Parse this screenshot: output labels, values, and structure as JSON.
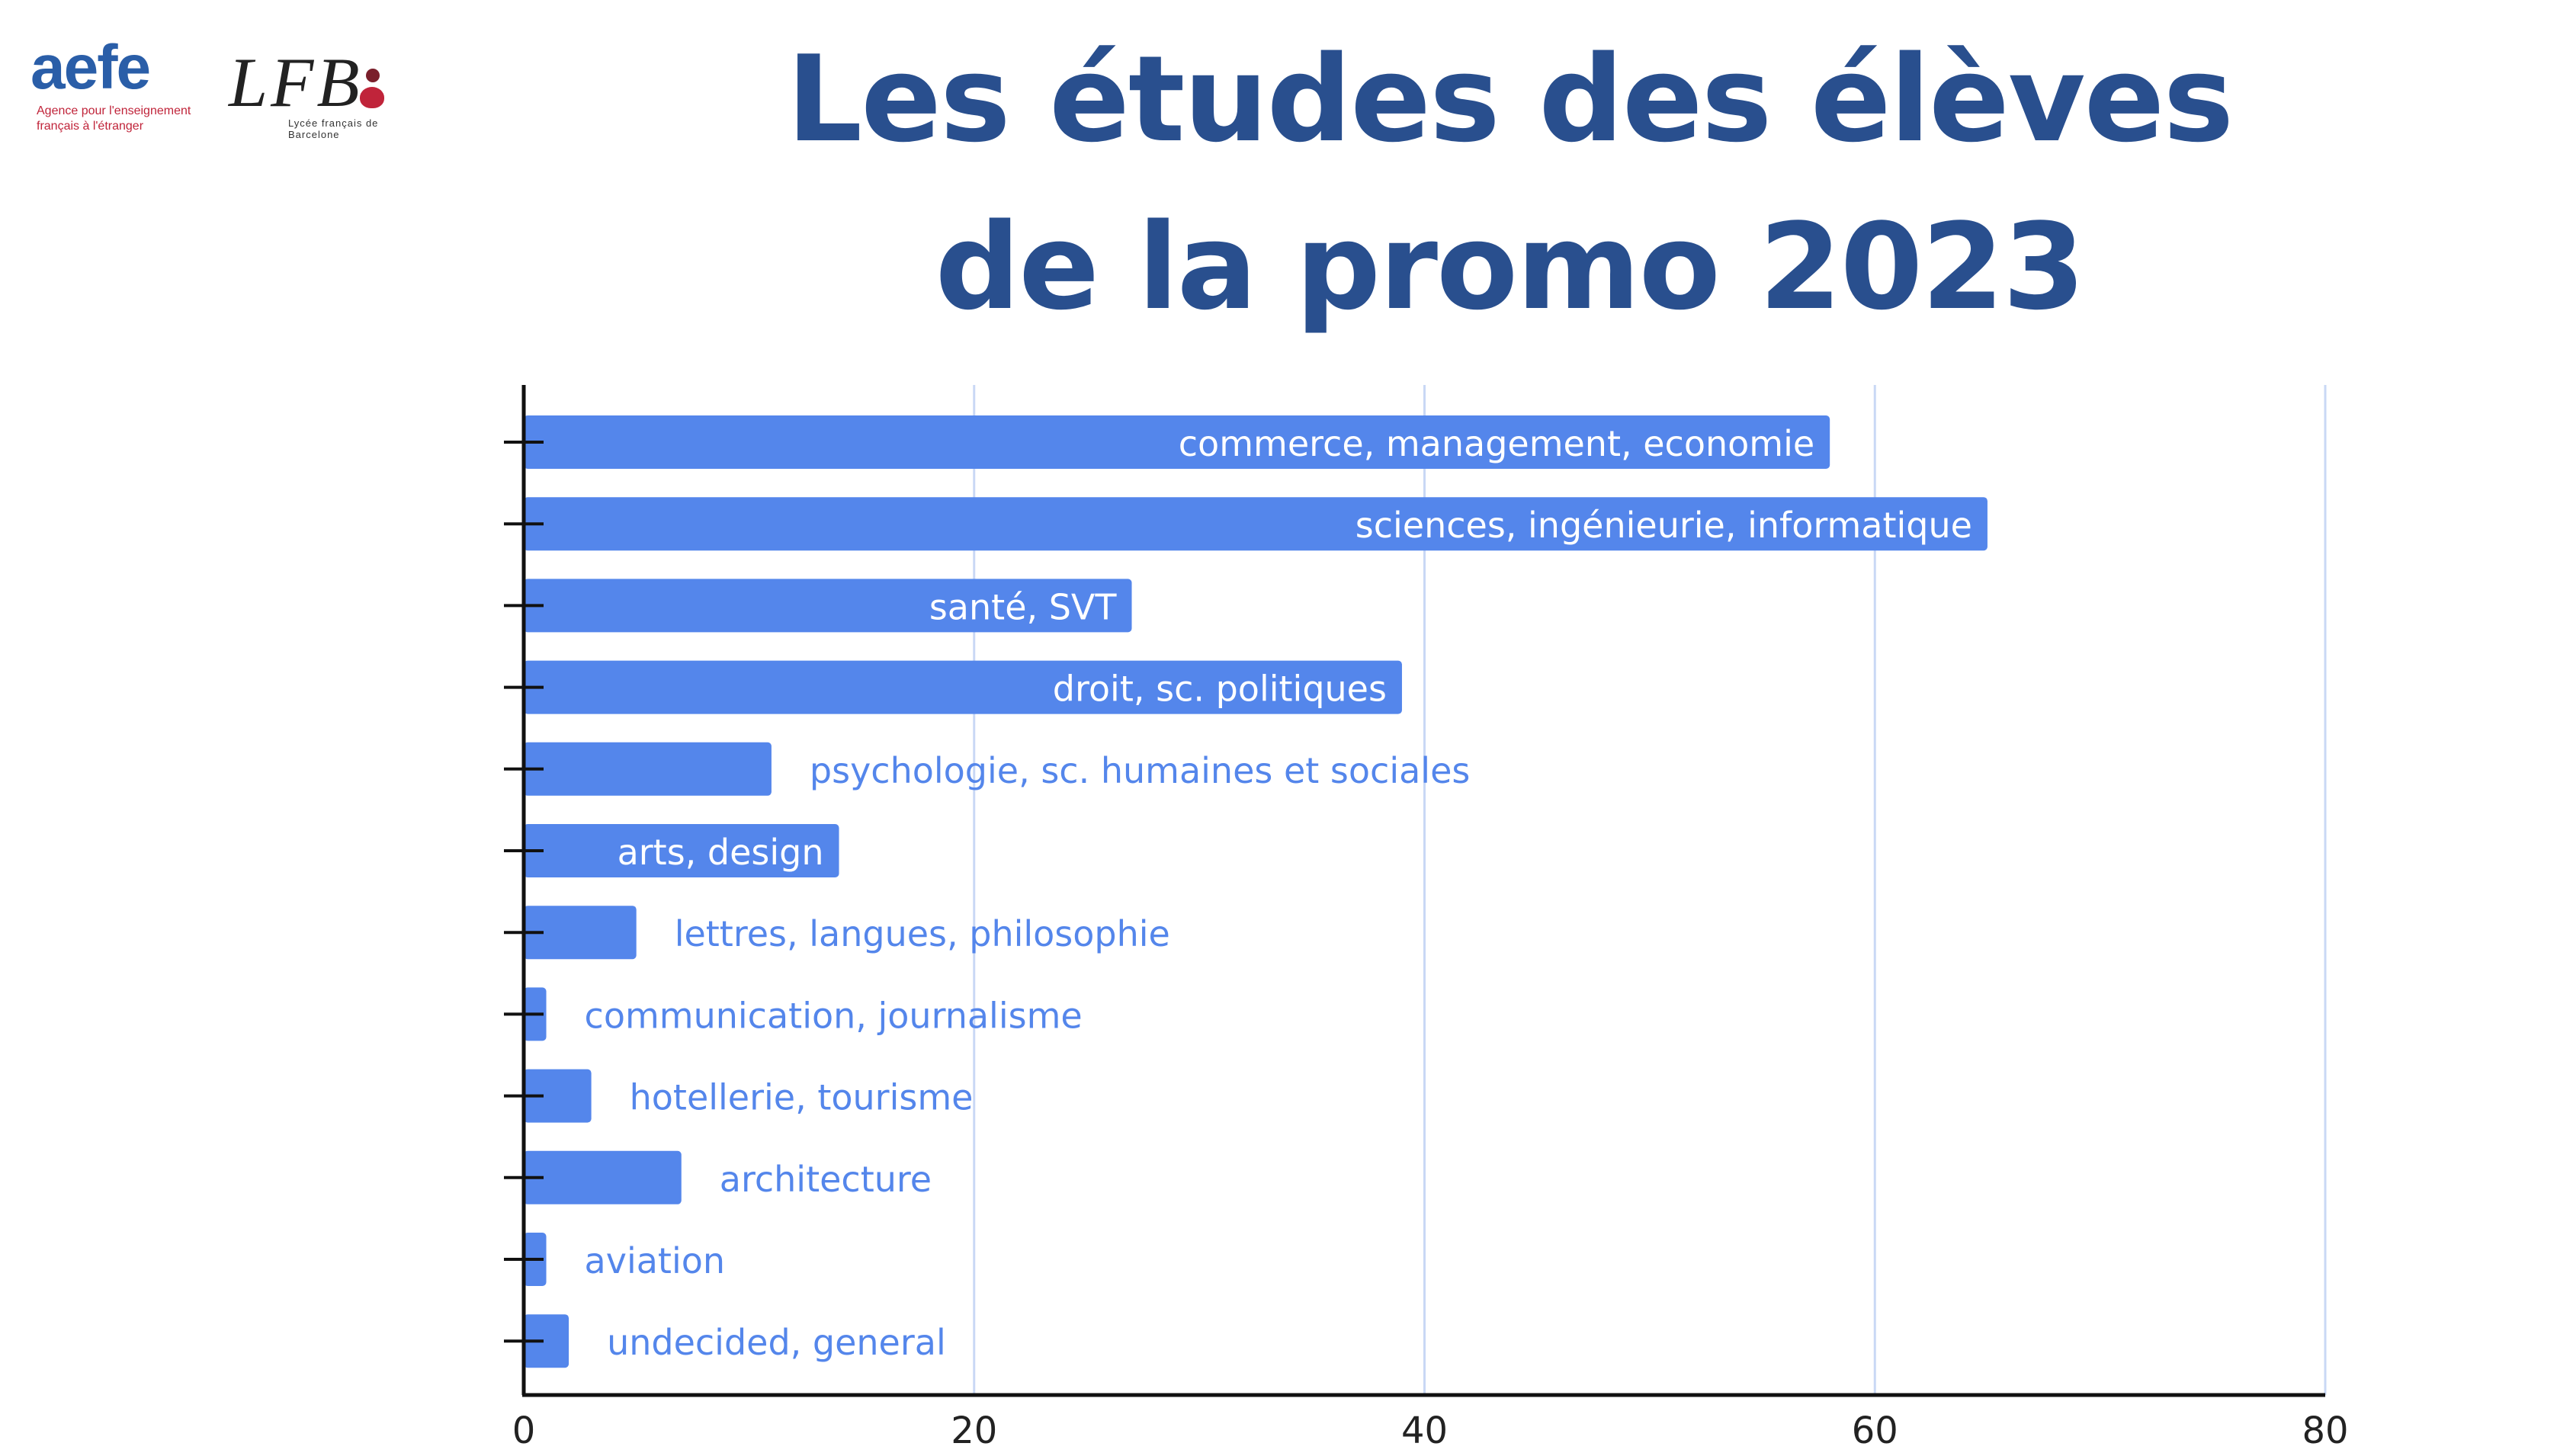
{
  "title_line1": "Les études des élèves",
  "title_line2": "de la promo 2023",
  "logos": {
    "aefe": {
      "word": "aefe",
      "tagline": "Agence pour l'enseignement français à l'étranger"
    },
    "lfb": {
      "word": "LFB",
      "subtitle": "Lycée français de Barcelone"
    }
  },
  "colors": {
    "bar": "#5486eb",
    "title": "#294f8e",
    "gridline": "#c9d8f5",
    "axis": "#111111",
    "label_inside": "#ffffff",
    "label_outside": "#5486eb"
  },
  "chart_data": {
    "type": "bar",
    "orientation": "horizontal",
    "categories": [
      "commerce, management, economie",
      "sciences, ingénieurie, informatique",
      "santé, SVT",
      "droit, sc. politiques",
      "psychologie, sc. humaines et sociales",
      "arts, design",
      "lettres, langues, philosophie",
      "communication, journalisme",
      "hotellerie, tourisme",
      "architecture",
      "aviation",
      "undecided, general"
    ],
    "values": [
      58,
      65,
      27,
      39,
      11,
      14,
      5,
      1,
      3,
      7,
      1,
      2
    ],
    "xlim": [
      0,
      80
    ],
    "xticks": [
      "0",
      "20",
      "40",
      "60",
      "80"
    ],
    "grid": true,
    "legend": "none",
    "category_labels": "on bars"
  }
}
